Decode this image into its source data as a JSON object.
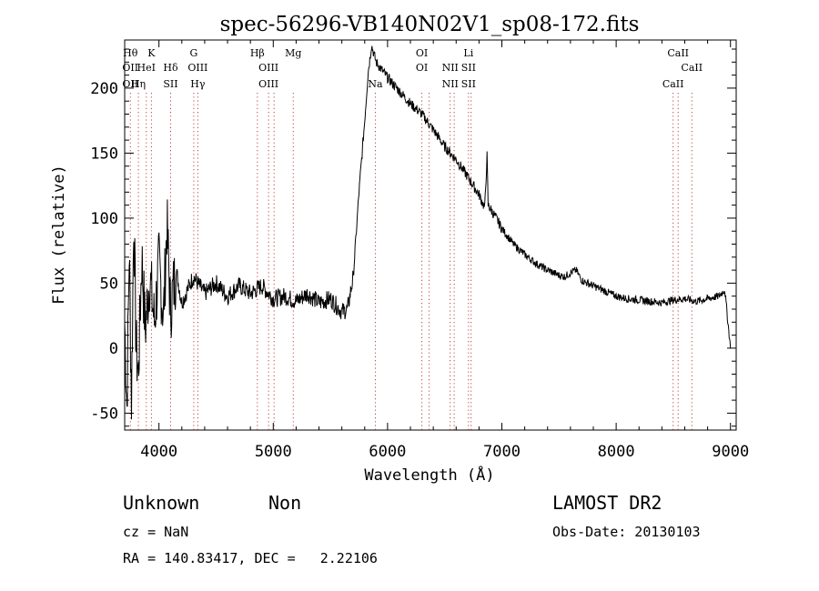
{
  "chart_data": {
    "type": "line",
    "title": "spec-56296-VB140N02V1_sp08-172.fits",
    "xlabel": "Wavelength (Å)",
    "ylabel": "Flux (relative)",
    "xlim": [
      3700,
      9050
    ],
    "ylim": [
      -63,
      237
    ],
    "xticks": [
      4000,
      5000,
      6000,
      7000,
      8000,
      9000
    ],
    "yticks": [
      -50,
      0,
      50,
      100,
      150,
      200
    ],
    "grid": false,
    "series": [
      {
        "points": [
          [
            3700,
            20
          ],
          [
            3720,
            -45
          ],
          [
            3740,
            75
          ],
          [
            3760,
            -40
          ],
          [
            3780,
            100
          ],
          [
            3800,
            0
          ],
          [
            3820,
            -20
          ],
          [
            3850,
            70
          ],
          [
            3880,
            15
          ],
          [
            3920,
            55
          ],
          [
            3960,
            20
          ],
          [
            4000,
            65
          ],
          [
            4040,
            25
          ],
          [
            4070,
            95
          ],
          [
            4100,
            30
          ],
          [
            4150,
            60
          ],
          [
            4200,
            35
          ],
          [
            4300,
            55
          ],
          [
            4400,
            42
          ],
          [
            4500,
            50
          ],
          [
            4600,
            40
          ],
          [
            4700,
            48
          ],
          [
            4800,
            42
          ],
          [
            4900,
            48
          ],
          [
            5000,
            38
          ],
          [
            5100,
            40
          ],
          [
            5200,
            36
          ],
          [
            5300,
            42
          ],
          [
            5400,
            35
          ],
          [
            5500,
            38
          ],
          [
            5600,
            28
          ],
          [
            5650,
            30
          ],
          [
            5700,
            55
          ],
          [
            5750,
            120
          ],
          [
            5800,
            175
          ],
          [
            5830,
            212
          ],
          [
            5860,
            233
          ],
          [
            5900,
            220
          ],
          [
            6000,
            208
          ],
          [
            6100,
            198
          ],
          [
            6200,
            188
          ],
          [
            6300,
            180
          ],
          [
            6400,
            168
          ],
          [
            6500,
            155
          ],
          [
            6600,
            145
          ],
          [
            6700,
            132
          ],
          [
            6800,
            118
          ],
          [
            6850,
            108
          ],
          [
            6870,
            148
          ],
          [
            6880,
            110
          ],
          [
            6950,
            100
          ],
          [
            7000,
            92
          ],
          [
            7100,
            80
          ],
          [
            7200,
            72
          ],
          [
            7300,
            65
          ],
          [
            7400,
            60
          ],
          [
            7500,
            56
          ],
          [
            7550,
            55
          ],
          [
            7600,
            58
          ],
          [
            7650,
            60
          ],
          [
            7700,
            52
          ],
          [
            7800,
            48
          ],
          [
            7900,
            44
          ],
          [
            8000,
            40
          ],
          [
            8100,
            38
          ],
          [
            8200,
            37
          ],
          [
            8300,
            36
          ],
          [
            8400,
            35
          ],
          [
            8500,
            37
          ],
          [
            8600,
            38
          ],
          [
            8700,
            36
          ],
          [
            8800,
            38
          ],
          [
            8900,
            40
          ],
          [
            8950,
            45
          ],
          [
            9000,
            0
          ]
        ]
      }
    ],
    "lines": [
      {
        "wl": 3750,
        "labels": [
          "Hθ",
          "OII",
          "OII"
        ]
      },
      {
        "wl": 3820,
        "labels": [
          "",
          "",
          "Hη"
        ]
      },
      {
        "wl": 3889,
        "labels": [
          "",
          "HeI",
          ""
        ]
      },
      {
        "wl": 3934,
        "labels": [
          "K",
          "",
          ""
        ]
      },
      {
        "wl": 4102,
        "labels": [
          "",
          "Hδ",
          "SII"
        ]
      },
      {
        "wl": 4304,
        "labels": [
          "G",
          "",
          ""
        ]
      },
      {
        "wl": 4340,
        "labels": [
          "",
          "OIII",
          "Hγ"
        ]
      },
      {
        "wl": 4861,
        "labels": [
          "Hβ",
          "",
          ""
        ]
      },
      {
        "wl": 4959,
        "labels": [
          "",
          "OIII",
          "OIII"
        ]
      },
      {
        "wl": 5007,
        "labels": [
          "",
          "",
          ""
        ]
      },
      {
        "wl": 5175,
        "labels": [
          "Mg",
          "",
          ""
        ]
      },
      {
        "wl": 5893,
        "labels": [
          "",
          "",
          "Na"
        ]
      },
      {
        "wl": 6300,
        "labels": [
          "OI",
          "OI",
          ""
        ]
      },
      {
        "wl": 6364,
        "labels": [
          "",
          "",
          ""
        ]
      },
      {
        "wl": 6548,
        "labels": [
          "",
          "NII",
          "NII"
        ]
      },
      {
        "wl": 6583,
        "labels": [
          "",
          "",
          ""
        ]
      },
      {
        "wl": 6708,
        "labels": [
          "Li",
          "SII",
          "SII"
        ]
      },
      {
        "wl": 6731,
        "labels": [
          "",
          "",
          ""
        ]
      },
      {
        "wl": 8498,
        "labels": [
          "",
          "",
          "CaII"
        ]
      },
      {
        "wl": 8542,
        "labels": [
          "CaII",
          "",
          ""
        ]
      },
      {
        "wl": 8662,
        "labels": [
          "",
          "CaII",
          ""
        ]
      }
    ]
  },
  "info": {
    "class": "Unknown",
    "subclass": "Non",
    "survey": "LAMOST DR2",
    "cz": "cz = NaN",
    "obs_date": "Obs-Date: 20130103",
    "coords": "RA = 140.83417, DEC =   2.22106"
  }
}
